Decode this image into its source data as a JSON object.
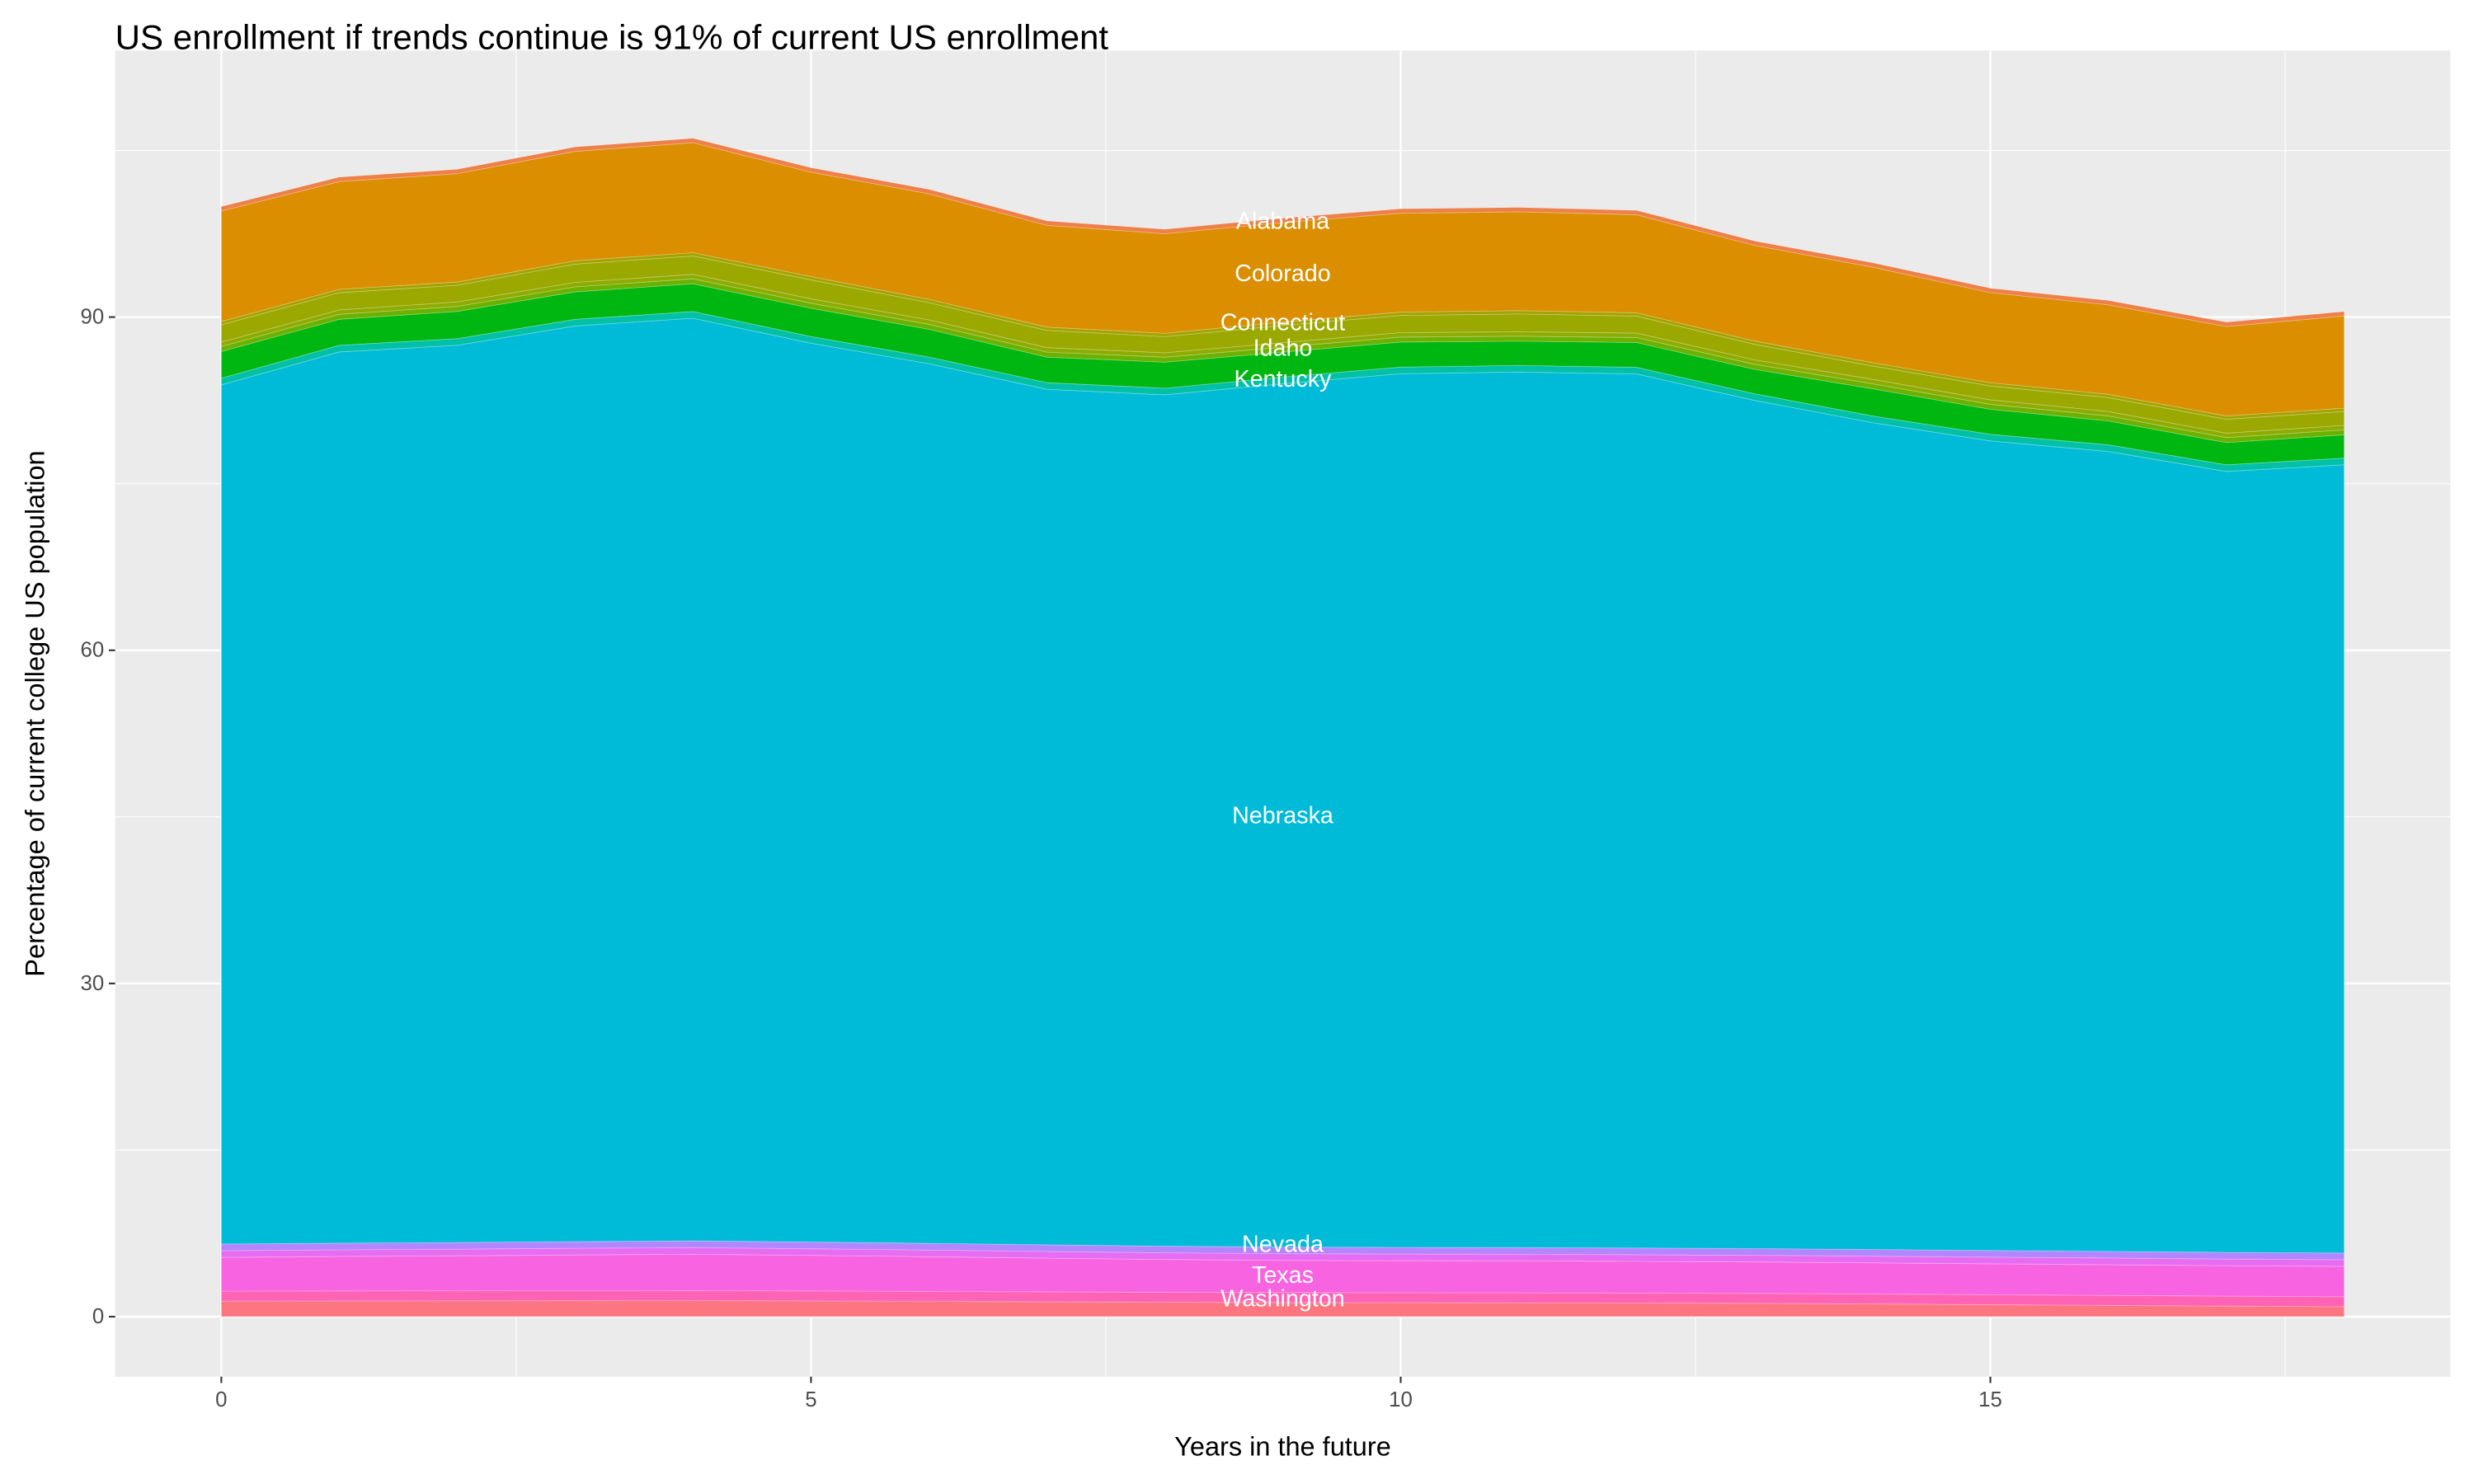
{
  "chart_data": {
    "type": "area",
    "stacked": true,
    "title": "US enrollment if trends continue is 91% of current US enrollment",
    "xlabel": "Years in the future",
    "ylabel": "Percentage of current college US population",
    "xlim": [
      -0.9,
      18.9
    ],
    "ylim": [
      -5.4,
      114
    ],
    "x_ticks": [
      0,
      5,
      10,
      15
    ],
    "y_ticks": [
      0,
      30,
      60,
      90
    ],
    "grid": true,
    "legend": "none",
    "panel_background": "#EBEBEB",
    "x": [
      0,
      1,
      2,
      3,
      4,
      5,
      6,
      7,
      8,
      9,
      10,
      11,
      12,
      13,
      14,
      15,
      16,
      17,
      18
    ],
    "series_bottom_to_top": [
      {
        "name": "Washington",
        "color": "#FC7580",
        "values": [
          1.4,
          1.42,
          1.43,
          1.44,
          1.45,
          1.42,
          1.38,
          1.34,
          1.3,
          1.28,
          1.26,
          1.25,
          1.23,
          1.2,
          1.15,
          1.08,
          1.02,
          0.95,
          0.9
        ]
      },
      {
        "color": "#FF63B6",
        "values": [
          0.9,
          0.9,
          0.9,
          0.9,
          0.9,
          0.9,
          0.9,
          0.9,
          0.9,
          0.9,
          0.9,
          0.9,
          0.9,
          0.9,
          0.9,
          0.9,
          0.9,
          0.9,
          0.9
        ]
      },
      {
        "name": "Texas",
        "color": "#F763E0",
        "values": [
          3.04,
          3.1,
          3.15,
          3.22,
          3.27,
          3.2,
          3.12,
          3.03,
          2.95,
          2.89,
          2.88,
          2.87,
          2.85,
          2.83,
          2.8,
          2.78,
          2.76,
          2.74,
          2.73
        ]
      },
      {
        "color": "#E66CF2",
        "values": [
          0.6,
          0.6,
          0.6,
          0.6,
          0.6,
          0.6,
          0.6,
          0.6,
          0.6,
          0.6,
          0.6,
          0.6,
          0.6,
          0.6,
          0.6,
          0.6,
          0.6,
          0.6,
          0.6
        ]
      },
      {
        "name": "Nevada",
        "color": "#B385FF",
        "values": [
          0.6,
          0.6,
          0.6,
          0.6,
          0.6,
          0.6,
          0.6,
          0.6,
          0.6,
          0.6,
          0.6,
          0.6,
          0.6,
          0.6,
          0.6,
          0.6,
          0.6,
          0.6,
          0.6
        ]
      },
      {
        "name": "Nebraska",
        "color": "#00BBD8",
        "values": [
          77.36,
          80.24,
          80.78,
          82.44,
          83.08,
          80.93,
          79.2,
          77.03,
          76.65,
          77.73,
          78.66,
          78.83,
          78.7,
          76.37,
          74.45,
          72.89,
          72.02,
          70.31,
          70.97
        ]
      },
      {
        "color": "#00C1A8",
        "values": [
          0.6,
          0.6,
          0.6,
          0.6,
          0.6,
          0.6,
          0.6,
          0.6,
          0.6,
          0.6,
          0.6,
          0.6,
          0.6,
          0.6,
          0.6,
          0.6,
          0.6,
          0.6,
          0.6
        ]
      },
      {
        "name": "Kentucky",
        "color": "#00B610",
        "values": [
          2.4,
          2.34,
          2.45,
          2.47,
          2.5,
          2.55,
          2.5,
          2.3,
          2.34,
          2.25,
          2.25,
          2.18,
          2.23,
          2.2,
          2.45,
          2.25,
          2.15,
          2.0,
          2.1
        ]
      },
      {
        "name": "Idaho",
        "color": "#6BB100",
        "values": [
          0.45,
          0.45,
          0.45,
          0.45,
          0.45,
          0.45,
          0.45,
          0.45,
          0.45,
          0.45,
          0.45,
          0.45,
          0.45,
          0.45,
          0.45,
          0.45,
          0.45,
          0.45,
          0.45
        ]
      },
      {
        "color": "#8EAB00",
        "values": [
          0.4,
          0.4,
          0.4,
          0.4,
          0.4,
          0.4,
          0.4,
          0.4,
          0.4,
          0.4,
          0.4,
          0.4,
          0.4,
          0.4,
          0.4,
          0.4,
          0.4,
          0.4,
          0.4
        ]
      },
      {
        "name": "Connecticut",
        "color": "#9AA800",
        "values": [
          1.55,
          1.55,
          1.5,
          1.65,
          1.65,
          1.7,
          1.55,
          1.55,
          1.45,
          1.55,
          1.55,
          1.6,
          1.53,
          1.4,
          1.2,
          1.25,
          1.25,
          1.25,
          1.25
        ]
      },
      {
        "color": "#A5A300",
        "values": [
          0.3,
          0.3,
          0.3,
          0.3,
          0.3,
          0.3,
          0.3,
          0.3,
          0.3,
          0.3,
          0.3,
          0.3,
          0.3,
          0.3,
          0.3,
          0.3,
          0.3,
          0.3,
          0.3
        ]
      },
      {
        "name": "Colorado",
        "color": "#DA8E00",
        "values": [
          9.95,
          9.7,
          9.75,
          9.85,
          9.9,
          9.4,
          9.5,
          9.16,
          8.97,
          8.96,
          8.9,
          8.9,
          8.82,
          8.6,
          8.6,
          8.1,
          8.05,
          8.05,
          8.3
        ]
      },
      {
        "name": "Alabama",
        "color": "#EE8048",
        "values": [
          0.3,
          0.3,
          0.3,
          0.3,
          0.3,
          0.3,
          0.3,
          0.3,
          0.3,
          0.3,
          0.3,
          0.3,
          0.3,
          0.3,
          0.3,
          0.3,
          0.3,
          0.3,
          0.3
        ]
      }
    ],
    "annotations": [
      {
        "text": "Alabama",
        "x": 9,
        "y": 98.6
      },
      {
        "text": "Colorado",
        "x": 9,
        "y": 93.9
      },
      {
        "text": "Connecticut",
        "x": 9,
        "y": 89.5
      },
      {
        "text": "Idaho",
        "x": 9,
        "y": 87.2
      },
      {
        "text": "Kentucky",
        "x": 9,
        "y": 84.4
      },
      {
        "text": "Nebraska",
        "x": 9,
        "y": 45.1
      },
      {
        "text": "Nevada",
        "x": 9,
        "y": 6.5
      },
      {
        "text": "Texas",
        "x": 9,
        "y": 3.7
      },
      {
        "text": "Washington",
        "x": 9,
        "y": 1.6
      }
    ]
  }
}
